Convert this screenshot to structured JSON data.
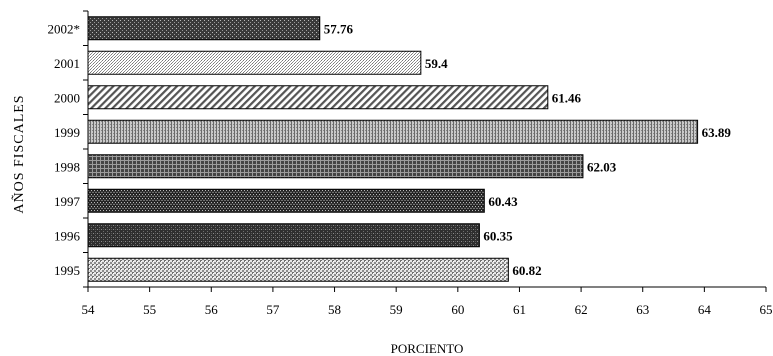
{
  "chart_data": {
    "type": "bar",
    "orientation": "horizontal",
    "categories": [
      "2002*",
      "2001",
      "2000",
      "1999",
      "1998",
      "1997",
      "1996",
      "1995"
    ],
    "values": [
      57.76,
      59.4,
      61.46,
      63.89,
      62.03,
      60.43,
      60.35,
      60.82
    ],
    "data_labels": [
      "57.76",
      "59.4",
      "61.46",
      "63.89",
      "62.03",
      "60.43",
      "60.35",
      "60.82"
    ],
    "xlabel": "PORCIENTO",
    "ylabel": "AÑOS FISCALES",
    "xlim": [
      54,
      65
    ],
    "xticks": [
      "54",
      "55",
      "56",
      "57",
      "58",
      "59",
      "60",
      "61",
      "62",
      "63",
      "64",
      "65"
    ],
    "grid": false,
    "legend": "none",
    "fill_patterns": [
      "dense-dark",
      "light-dots",
      "diagonal-stripes",
      "vertical-stripes",
      "dark-crosshatch",
      "zigzag-dark",
      "dark-mesh",
      "checker-light"
    ]
  }
}
